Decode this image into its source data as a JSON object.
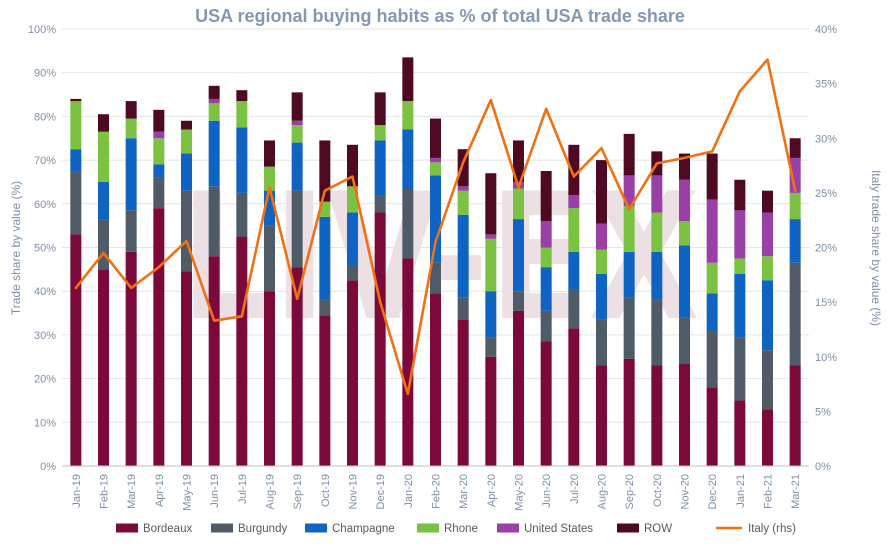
{
  "chart_data": {
    "type": "bar",
    "stacked": true,
    "title": "USA regional buying habits as % of total USA trade share",
    "ylabel": "Trade share by value (%)",
    "y2label": "Italy trade share by value (%)",
    "ylim": [
      0,
      100
    ],
    "y2lim": [
      0,
      40
    ],
    "yticks": [
      "0%",
      "10%",
      "20%",
      "30%",
      "40%",
      "50%",
      "60%",
      "70%",
      "80%",
      "90%",
      "100%"
    ],
    "y2ticks": [
      "0%",
      "5%",
      "10%",
      "15%",
      "20%",
      "25%",
      "30%",
      "35%",
      "40%"
    ],
    "grid": true,
    "legend_position": "bottom",
    "watermark": "LIV-EX",
    "categories": [
      "Jan-19",
      "Feb-19",
      "Mar-19",
      "Apr-19",
      "May-19",
      "Jun-19",
      "Jul-19",
      "Aug-19",
      "Sep-19",
      "Oct-19",
      "Nov-19",
      "Dec-19",
      "Jan-20",
      "Feb-20",
      "Mar-20",
      "Apr-20",
      "May-20",
      "Jun-20",
      "Jul-20",
      "Aug-20",
      "Sep-20",
      "Oct-20",
      "Nov-20",
      "Dec-20",
      "Jan-21",
      "Feb-21",
      "Mar-21"
    ],
    "series": [
      {
        "name": "Bordeaux",
        "color": "#7b0a3a",
        "values": [
          53,
          45,
          49,
          59,
          44.5,
          48,
          52.5,
          40,
          45.5,
          34.5,
          42.5,
          58,
          47.5,
          39.5,
          33.5,
          25,
          35.5,
          28.5,
          31.5,
          23,
          24.5,
          23,
          23.5,
          18,
          15,
          13,
          23
        ]
      },
      {
        "name": "Burgundy",
        "color": "#4f5b66",
        "values": [
          14.5,
          11.5,
          9.5,
          7,
          18.5,
          16,
          10,
          15,
          17.5,
          3.5,
          3.5,
          4,
          16,
          7,
          5,
          4.5,
          4.5,
          7,
          9,
          10.5,
          14,
          15,
          10.5,
          13,
          14.5,
          13.5,
          23.5
        ]
      },
      {
        "name": "Champagne",
        "color": "#0f63c2",
        "values": [
          5,
          8.5,
          16.5,
          3,
          8.5,
          15,
          15,
          8,
          11,
          19,
          12,
          12.5,
          13.5,
          20,
          19,
          10.5,
          16.5,
          10,
          8.5,
          10.5,
          10.5,
          11,
          16.5,
          8.5,
          14.5,
          16,
          10
        ]
      },
      {
        "name": "Rhone",
        "color": "#7cc242",
        "values": [
          11,
          11.5,
          4.5,
          6,
          5.5,
          4,
          6,
          5.5,
          4,
          3.5,
          6,
          3.5,
          6.5,
          3,
          5.5,
          12,
          7,
          4.5,
          10,
          5.5,
          10.5,
          9,
          5.5,
          7,
          3.5,
          5.5,
          6
        ]
      },
      {
        "name": "United States",
        "color": "#9a3fa6",
        "values": [
          0,
          0,
          0,
          1.5,
          0,
          1,
          0,
          0,
          1,
          0,
          0,
          0,
          0,
          1,
          1,
          1,
          1.5,
          6,
          3,
          6,
          7,
          8.5,
          9.5,
          14.5,
          11,
          10,
          8
        ]
      },
      {
        "name": "ROW",
        "color": "#4e0a22",
        "values": [
          0.5,
          4,
          4,
          5,
          2,
          3,
          2.5,
          6,
          6.5,
          14,
          9.5,
          7.5,
          10,
          9,
          8.5,
          14,
          9.5,
          11.5,
          11.5,
          14.5,
          9.5,
          5.5,
          6,
          10.5,
          7,
          5,
          4.5
        ]
      }
    ],
    "line_series": {
      "name": "Italy (rhs)",
      "color": "#ef7114",
      "axis": "right",
      "values": [
        16.3,
        19.5,
        16.3,
        18.2,
        20.6,
        13.3,
        13.7,
        25.5,
        15.3,
        25.2,
        26.5,
        15,
        6.6,
        20.5,
        27.8,
        33.5,
        25.5,
        32.7,
        26.5,
        29.1,
        23.5,
        27.7,
        28.2,
        28.8,
        34.3,
        37.2,
        25.2
      ]
    }
  }
}
